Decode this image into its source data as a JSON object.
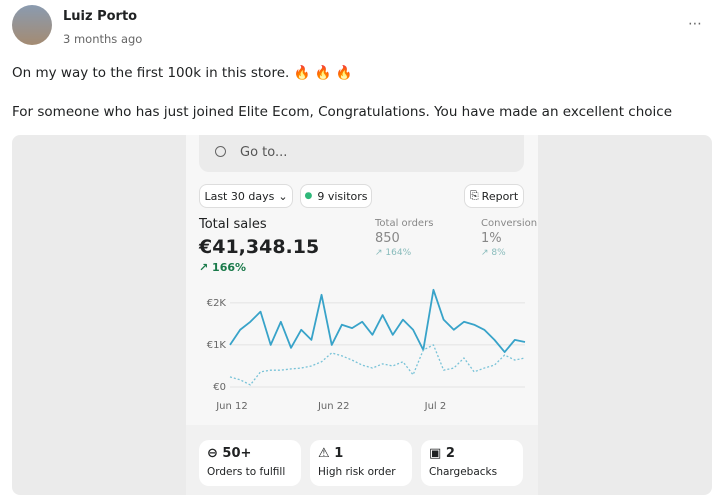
{
  "post": {
    "author": "Luiz Porto",
    "time": "3 months ago",
    "text": [
      "On my way to the first 100k in this store. 🔥 🔥 🔥",
      "For someone who has just joined Elite Ecom, Congratulations. You have made an excellent choice"
    ]
  },
  "dashboard": {
    "search": "Go to...",
    "filter": "Last 30 days",
    "visitors": "9 visitors",
    "report": "Report",
    "metrics": [
      {
        "label": "Total sales",
        "value": "€41,348.15",
        "change": "166%"
      },
      {
        "label": "Total orders",
        "value": "850",
        "change": "164%"
      },
      {
        "label": "Conversion",
        "value": "1%",
        "change": "8%"
      }
    ],
    "cards": [
      {
        "value": "50+",
        "label": "Orders to fulfill"
      },
      {
        "value": "1",
        "label": "High risk order"
      },
      {
        "value": "2",
        "label": "Chargebacks"
      }
    ]
  },
  "chart_data": {
    "type": "line",
    "categories": [
      "Jun 12",
      null,
      null,
      null,
      null,
      null,
      null,
      null,
      null,
      null,
      "Jun 22",
      null,
      null,
      null,
      null,
      null,
      null,
      null,
      null,
      null,
      "Jul 2",
      null,
      null,
      null,
      null,
      null,
      null,
      null,
      null,
      null
    ],
    "series": [
      {
        "color": "#38a3c9",
        "dashed": false,
        "values": [
          1000,
          1360,
          1550,
          1790,
          1000,
          1550,
          930,
          1360,
          1120,
          2190,
          1000,
          1480,
          1400,
          1550,
          1240,
          1710,
          1240,
          1600,
          1360,
          880,
          2310,
          1600,
          1360,
          1550,
          1480,
          1360,
          1120,
          830,
          1120,
          1070
        ]
      },
      {
        "color": "#79c3d8",
        "dashed": true,
        "values": [
          240,
          170,
          50,
          360,
          400,
          400,
          430,
          450,
          500,
          600,
          810,
          740,
          640,
          520,
          450,
          550,
          500,
          600,
          290,
          880,
          1000,
          400,
          450,
          690,
          360,
          450,
          520,
          760,
          640,
          690
        ]
      }
    ],
    "ylim": [
      0,
      2400
    ],
    "yticks": [
      {
        "value": 0,
        "label": "€0"
      },
      {
        "value": 1000,
        "label": "€1K"
      },
      {
        "value": 2000,
        "label": "€2K"
      }
    ],
    "grid": true
  }
}
